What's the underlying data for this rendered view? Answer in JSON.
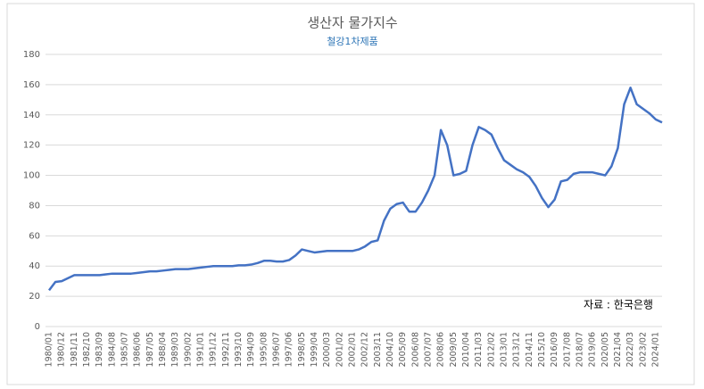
{
  "chart_data": {
    "type": "line",
    "title": "생산자 물가지수",
    "subtitle": "철강1차제품",
    "annotation": "자료 : 한국은행",
    "categories": [
      "1980/01",
      null,
      "1980/12",
      null,
      "1981/11",
      null,
      "1982/10",
      null,
      "1983/09",
      null,
      "1984/08",
      null,
      "1985/07",
      null,
      "1986/06",
      null,
      "1987/05",
      null,
      "1988/04",
      null,
      "1989/03",
      null,
      "1990/02",
      null,
      "1991/01",
      null,
      "1991/12",
      null,
      "1992/11",
      null,
      "1993/10",
      null,
      "1994/09",
      null,
      "1995/08",
      null,
      "1996/07",
      null,
      "1997/06",
      null,
      "1998/05",
      null,
      "1999/04",
      null,
      "2000/03",
      null,
      "2001/02",
      null,
      "2002/01",
      null,
      "2002/12",
      null,
      "2003/11",
      null,
      "2004/10",
      null,
      "2005/09",
      null,
      "2006/08",
      null,
      "2007/07",
      null,
      "2008/06",
      null,
      "2009/05",
      null,
      "2010/04",
      null,
      "2011/03",
      null,
      "2012/02",
      null,
      "2013/01",
      null,
      "2013/12",
      null,
      "2014/11",
      null,
      "2015/10",
      null,
      "2016/09",
      null,
      "2017/08",
      null,
      "2018/07",
      null,
      "2019/06",
      null,
      "2020/05",
      null,
      "2021/04",
      null,
      "2022/03",
      null,
      "2023/02",
      null,
      "2024/01",
      null
    ],
    "series": [
      {
        "color": "#4472c4",
        "values": [
          24,
          29.5,
          30,
          32,
          34,
          34,
          34,
          34,
          34,
          34.5,
          35,
          35,
          35,
          35,
          35.5,
          36,
          36.5,
          36.5,
          37,
          37.5,
          38,
          38,
          38,
          38.5,
          39,
          39.5,
          40,
          40,
          40,
          40,
          40.5,
          40.5,
          41,
          42,
          43.5,
          43.5,
          43,
          43,
          44,
          47,
          51,
          50,
          49,
          49.5,
          50,
          50,
          50,
          50,
          50,
          51,
          53,
          56,
          57,
          70,
          78,
          81,
          82,
          76,
          76,
          82,
          90,
          100,
          130,
          120,
          100,
          101,
          103,
          120,
          132,
          130,
          127,
          118,
          110,
          107,
          104,
          102,
          99,
          93,
          85,
          79,
          84,
          96,
          97,
          101,
          102,
          102,
          102,
          101,
          100,
          106,
          118,
          147,
          158,
          147,
          144,
          141,
          137,
          135
        ]
      }
    ],
    "ylim": [
      0,
      180
    ],
    "yticks": [
      0,
      20,
      40,
      60,
      80,
      100,
      120,
      140,
      160,
      180
    ],
    "grid": true
  }
}
